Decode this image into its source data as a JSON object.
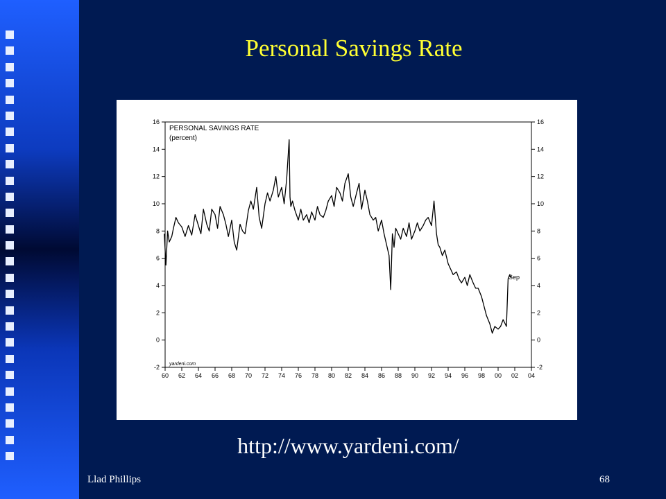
{
  "slide": {
    "title": "Personal Savings Rate",
    "url": "http://www.yardeni.com/",
    "author": "Llad Phillips",
    "page_number": "68"
  },
  "colors": {
    "background": "#001a52",
    "title": "#ffff33",
    "text": "#ffffff",
    "chart_line": "#000000"
  },
  "chart_data": {
    "type": "line",
    "title": "PERSONAL SAVINGS RATE",
    "subtitle": "(percent)",
    "source": "yardeni.com",
    "end_label": "Sep",
    "xlim": [
      1960,
      2004
    ],
    "ylim": [
      -2,
      16
    ],
    "x_ticks": [
      1960,
      1962,
      1964,
      1966,
      1968,
      1970,
      1972,
      1974,
      1976,
      1978,
      1980,
      1982,
      1984,
      1986,
      1988,
      1990,
      1992,
      1994,
      1996,
      1998,
      2000,
      2002,
      2004
    ],
    "x_tick_labels": [
      "60",
      "62",
      "64",
      "66",
      "68",
      "70",
      "72",
      "74",
      "76",
      "78",
      "80",
      "82",
      "84",
      "86",
      "88",
      "90",
      "92",
      "94",
      "96",
      "98",
      "00",
      "02",
      "04"
    ],
    "y_ticks": [
      -2,
      0,
      2,
      4,
      6,
      8,
      10,
      12,
      14,
      16
    ],
    "y_tick_labels": [
      "-2",
      "0",
      "2",
      "4",
      "6",
      "8",
      "10",
      "12",
      "14",
      "16"
    ],
    "grid": false,
    "series": [
      {
        "x": [
          1959.9,
          1960.1,
          1960.3,
          1960.5,
          1960.8,
          1961.0,
          1961.3,
          1961.6,
          1962.0,
          1962.4,
          1962.8,
          1963.2,
          1963.6,
          1964.0,
          1964.3,
          1964.6,
          1965.0,
          1965.3,
          1965.6,
          1966.0,
          1966.3,
          1966.6,
          1967.0,
          1967.3,
          1967.6,
          1968.0,
          1968.3,
          1968.6,
          1969.0,
          1969.3,
          1969.6,
          1970.0,
          1970.3,
          1970.6,
          1971.0,
          1971.3,
          1971.6,
          1972.0,
          1972.3,
          1972.6,
          1973.0,
          1973.3,
          1973.6,
          1974.0,
          1974.3,
          1974.6,
          1974.9,
          1975.0,
          1975.1,
          1975.3,
          1975.6,
          1976.0,
          1976.3,
          1976.6,
          1977.0,
          1977.3,
          1977.6,
          1978.0,
          1978.3,
          1978.6,
          1979.0,
          1979.3,
          1979.6,
          1980.0,
          1980.3,
          1980.6,
          1981.0,
          1981.3,
          1981.6,
          1982.0,
          1982.3,
          1982.6,
          1983.0,
          1983.3,
          1983.6,
          1984.0,
          1984.3,
          1984.6,
          1985.0,
          1985.3,
          1985.6,
          1986.0,
          1986.3,
          1986.6,
          1986.9,
          1987.1,
          1987.3,
          1987.5,
          1987.7,
          1988.0,
          1988.3,
          1988.6,
          1989.0,
          1989.3,
          1989.6,
          1990.0,
          1990.3,
          1990.6,
          1991.0,
          1991.3,
          1991.6,
          1992.0,
          1992.3,
          1992.6,
          1992.8,
          1993.0,
          1993.3,
          1993.6,
          1994.0,
          1994.3,
          1994.6,
          1995.0,
          1995.3,
          1995.6,
          1996.0,
          1996.3,
          1996.6,
          1997.0,
          1997.3,
          1997.6,
          1998.0,
          1998.3,
          1998.6,
          1999.0,
          1999.3,
          1999.6,
          2000.0,
          2000.3,
          2000.6,
          2001.0,
          2001.2,
          2001.4,
          2001.5,
          2001.6
        ],
        "y": [
          7.8,
          5.5,
          8.0,
          7.2,
          7.6,
          8.2,
          9.0,
          8.6,
          8.3,
          7.6,
          8.4,
          7.7,
          9.2,
          8.4,
          7.8,
          9.6,
          8.5,
          8.0,
          9.6,
          9.2,
          8.2,
          9.8,
          9.2,
          8.5,
          7.6,
          8.8,
          7.2,
          6.6,
          8.5,
          8.0,
          7.8,
          9.5,
          10.2,
          9.6,
          11.2,
          9.0,
          8.2,
          10.0,
          10.8,
          10.2,
          11.0,
          12.0,
          10.5,
          11.2,
          10.0,
          11.8,
          14.7,
          10.5,
          9.8,
          10.2,
          9.5,
          8.8,
          9.6,
          8.8,
          9.2,
          8.6,
          9.4,
          8.8,
          9.8,
          9.2,
          9.0,
          9.5,
          10.2,
          10.6,
          9.8,
          11.2,
          10.8,
          10.2,
          11.5,
          12.2,
          10.5,
          9.8,
          10.8,
          11.5,
          9.6,
          11.0,
          10.2,
          9.2,
          8.8,
          9.0,
          8.0,
          8.8,
          7.8,
          7.0,
          6.2,
          3.7,
          7.8,
          6.8,
          8.2,
          7.8,
          7.4,
          8.2,
          7.6,
          8.6,
          7.4,
          8.0,
          8.6,
          8.0,
          8.4,
          8.8,
          9.0,
          8.4,
          10.2,
          7.8,
          7.0,
          6.8,
          6.2,
          6.6,
          5.6,
          5.2,
          4.8,
          5.0,
          4.5,
          4.2,
          4.6,
          4.0,
          4.8,
          4.2,
          3.8,
          3.8,
          3.2,
          2.5,
          1.8,
          1.2,
          0.5,
          1.0,
          0.8,
          1.0,
          1.5,
          1.0,
          4.5,
          4.8,
          4.6,
          4.7
        ]
      }
    ]
  }
}
